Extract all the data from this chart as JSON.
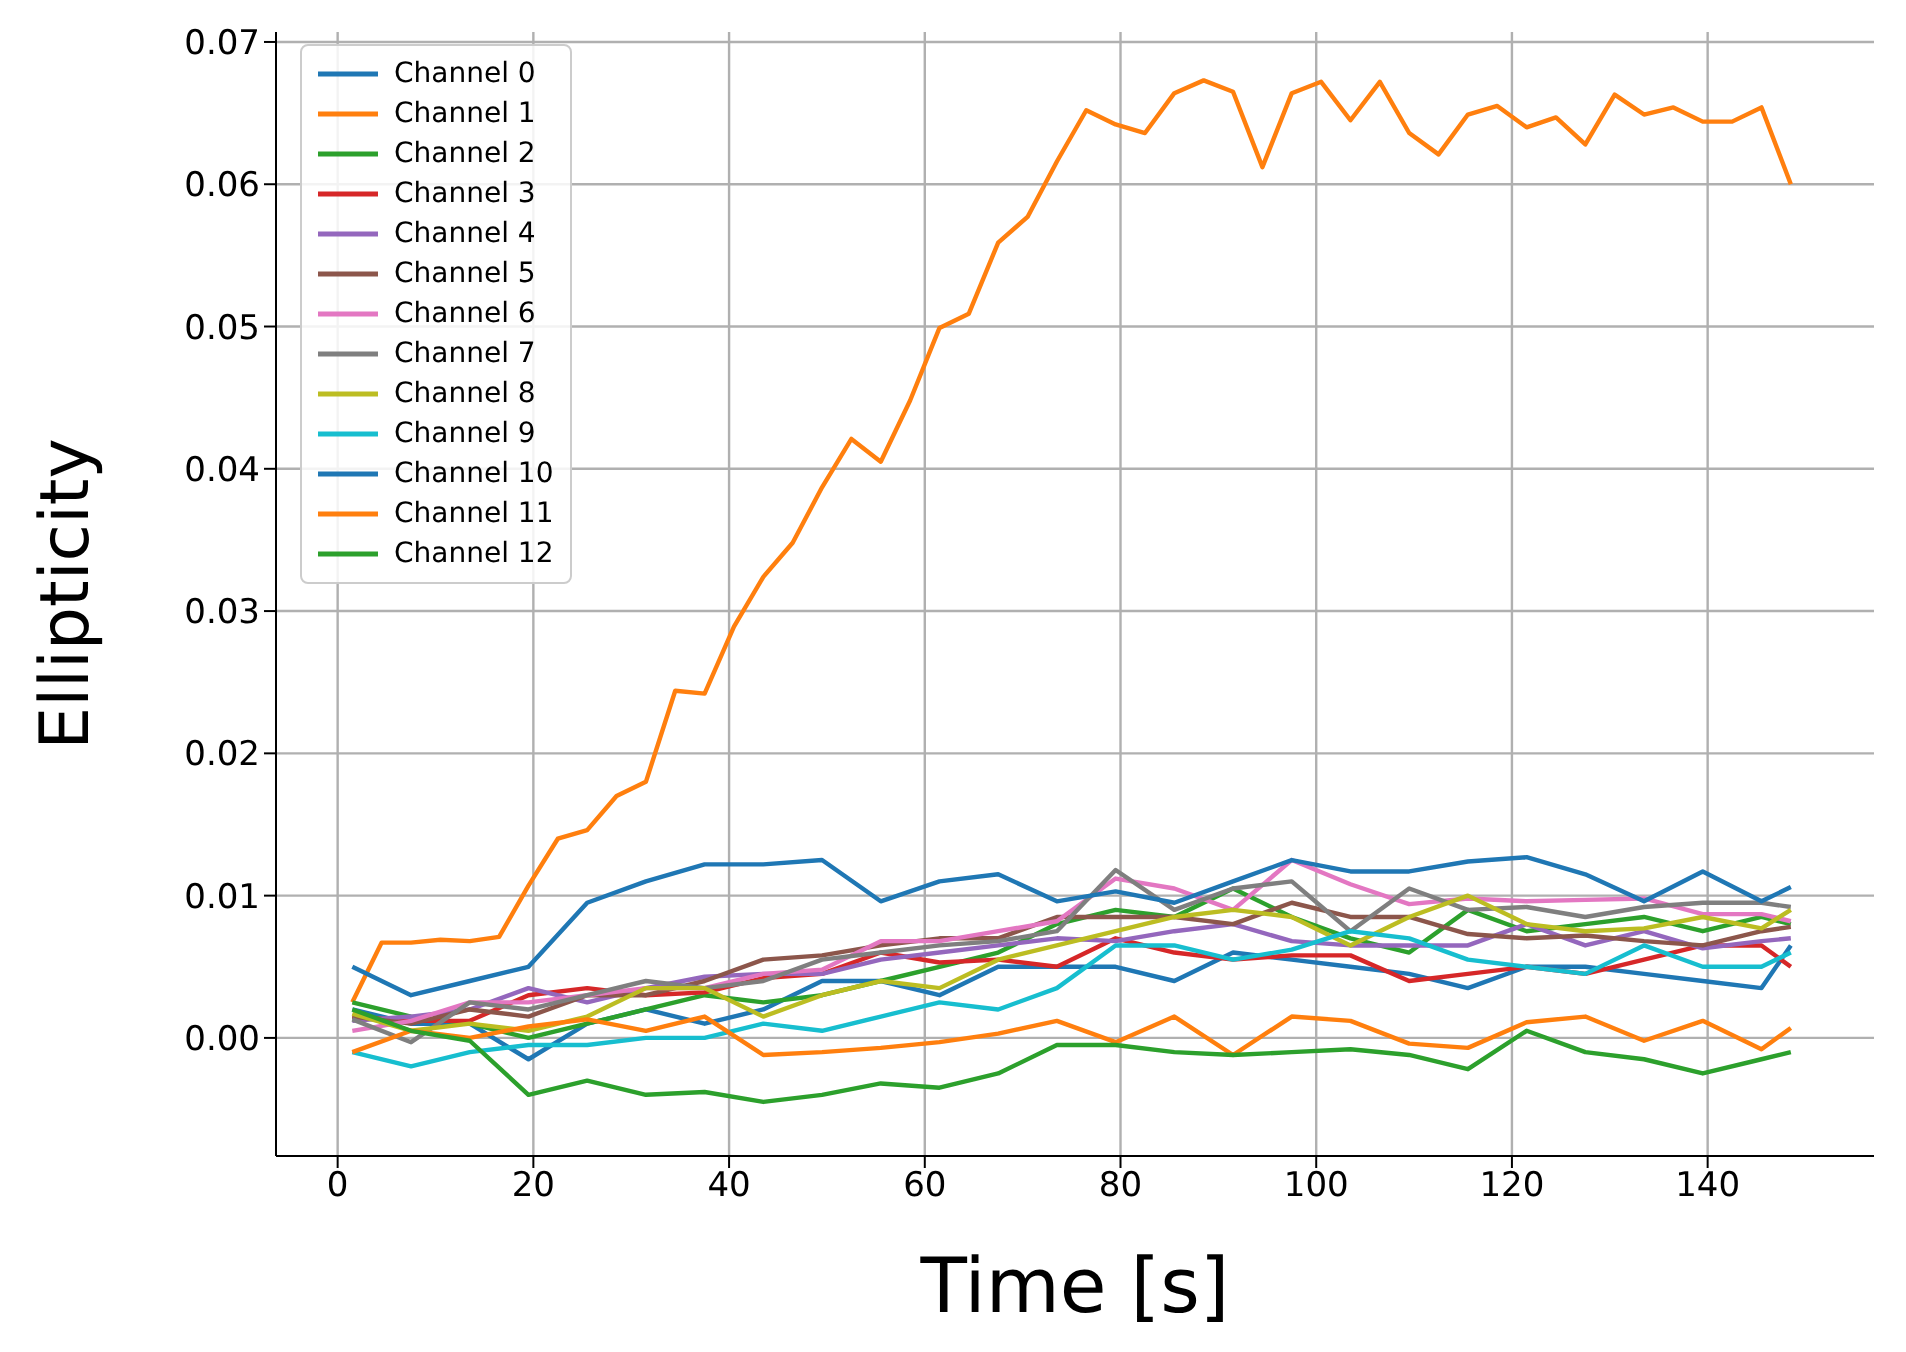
{
  "chart_data": {
    "type": "line",
    "xlabel": "Time [s]",
    "ylabel": "Ellipticity",
    "xlim": [
      -6.3,
      157
    ],
    "ylim": [
      -0.0083,
      0.0707
    ],
    "xticks": [
      0,
      20,
      40,
      60,
      80,
      100,
      120,
      140
    ],
    "yticks": [
      {
        "value": 0,
        "label": "0.00"
      },
      {
        "value": 0.01,
        "label": "0.01"
      },
      {
        "value": 0.02,
        "label": "0.02"
      },
      {
        "value": 0.03,
        "label": "0.03"
      },
      {
        "value": 0.04,
        "label": "0.04"
      },
      {
        "value": 0.05,
        "label": "0.05"
      },
      {
        "value": 0.06,
        "label": "0.06"
      },
      {
        "value": 0.07,
        "label": "0.07"
      }
    ],
    "grid": true,
    "legend": "top left",
    "line_style": "solid",
    "marker": "none",
    "x": [
      1.5,
      7.5,
      13.5,
      19.5,
      25.5,
      31.5,
      37.5,
      43.5,
      49.5,
      55.5,
      61.5,
      67.5,
      73.5,
      79.5,
      85.5,
      91.5,
      97.5,
      103.5,
      109.5,
      115.5,
      121.5,
      127.5,
      133.5,
      139.5,
      145.5,
      148.5
    ],
    "series": [
      {
        "name": "Channel 0",
        "color": "#1f77b4",
        "values": [
          0.002,
          0.001,
          0.001,
          -0.0015,
          0.001,
          0.002,
          0.001,
          0.002,
          0.004,
          0.004,
          0.003,
          0.005,
          0.005,
          0.005,
          0.004,
          0.006,
          0.0055,
          0.005,
          0.0045,
          0.0035,
          0.005,
          0.005,
          0.0045,
          0.004,
          0.0035,
          0.0065
        ]
      },
      {
        "name": "Channel 1",
        "color": "#ff7f0e",
        "x": [
          1.5,
          4.5,
          7.5,
          10.5,
          13.5,
          16.5,
          19.5,
          22.5,
          25.5,
          28.5,
          31.5,
          34.5,
          37.5,
          40.5,
          43.5,
          46.5,
          49.5,
          52.5,
          55.5,
          58.5,
          61.5,
          64.5,
          67.5,
          70.5,
          73.5,
          76.5,
          79.5,
          82.5,
          85.5,
          88.5,
          91.5,
          94.5,
          97.5,
          100.5,
          103.5,
          106.5,
          109.5,
          112.5,
          115.5,
          118.5,
          121.5,
          124.5,
          127.5,
          130.5,
          133.5,
          136.5,
          139.5,
          142.5,
          145.5,
          148.5
        ],
        "values": [
          0.0025,
          0.0067,
          0.0067,
          0.0069,
          0.0068,
          0.0071,
          0.0107,
          0.014,
          0.0146,
          0.017,
          0.018,
          0.0244,
          0.0242,
          0.0289,
          0.0324,
          0.0348,
          0.0387,
          0.0421,
          0.0405,
          0.0448,
          0.0499,
          0.0509,
          0.0559,
          0.0577,
          0.0616,
          0.0652,
          0.0642,
          0.0636,
          0.0664,
          0.0673,
          0.0665,
          0.0612,
          0.0664,
          0.0672,
          0.0645,
          0.0672,
          0.0636,
          0.0621,
          0.0649,
          0.0655,
          0.064,
          0.0647,
          0.0628,
          0.0663,
          0.0649,
          0.0654,
          0.0644,
          0.0644,
          0.0654,
          0.06
        ]
      },
      {
        "name": "Channel 2",
        "color": "#2ca02c",
        "values": [
          0.0025,
          0.0015,
          0.001,
          0,
          0.001,
          0.002,
          0.003,
          0.0025,
          0.003,
          0.004,
          0.005,
          0.006,
          0.008,
          0.009,
          0.0085,
          0.0105,
          0.0085,
          0.007,
          0.006,
          0.009,
          0.0075,
          0.008,
          0.0085,
          0.0075,
          0.0085,
          0.008
        ]
      },
      {
        "name": "Channel 3",
        "color": "#d62728",
        "values": [
          0.0015,
          0.0012,
          0.0012,
          0.003,
          0.0035,
          0.003,
          0.0032,
          0.0042,
          0.0045,
          0.006,
          0.0053,
          0.0055,
          0.005,
          0.007,
          0.006,
          0.0055,
          0.0058,
          0.0058,
          0.004,
          0.0045,
          0.005,
          0.0045,
          0.0055,
          0.0065,
          0.0065,
          0.005
        ]
      },
      {
        "name": "Channel 4",
        "color": "#9467bd",
        "values": [
          0.0012,
          0.0015,
          0.002,
          0.0035,
          0.0025,
          0.0035,
          0.0043,
          0.0045,
          0.0045,
          0.0055,
          0.006,
          0.0065,
          0.007,
          0.0068,
          0.0075,
          0.008,
          0.0068,
          0.0065,
          0.0065,
          0.0065,
          0.008,
          0.0065,
          0.0075,
          0.0063,
          0.0068,
          0.007
        ]
      },
      {
        "name": "Channel 5",
        "color": "#8c564b",
        "values": [
          0.0015,
          0.001,
          0.002,
          0.0015,
          0.003,
          0.003,
          0.004,
          0.0055,
          0.0058,
          0.0065,
          0.007,
          0.007,
          0.0085,
          0.0085,
          0.0085,
          0.008,
          0.0095,
          0.0085,
          0.0085,
          0.0073,
          0.007,
          0.0072,
          0.0068,
          0.0065,
          0.0075,
          0.0078
        ]
      },
      {
        "name": "Channel 6",
        "color": "#e377c2",
        "values": [
          0.0005,
          0.0012,
          0.0025,
          0.0025,
          0.003,
          0.0035,
          0.0035,
          0.0045,
          0.0048,
          0.0068,
          0.0068,
          0.0075,
          0.0082,
          0.0112,
          0.0105,
          0.009,
          0.0125,
          0.0108,
          0.0094,
          0.0098,
          0.0096,
          0.0097,
          0.0098,
          0.0087,
          0.0087,
          0.0082
        ]
      },
      {
        "name": "Channel 7",
        "color": "#7f7f7f",
        "values": [
          0.0013,
          -0.0003,
          0.0025,
          0.002,
          0.003,
          0.004,
          0.0035,
          0.004,
          0.0055,
          0.006,
          0.0065,
          0.0068,
          0.0075,
          0.0118,
          0.009,
          0.0105,
          0.011,
          0.0075,
          0.0105,
          0.009,
          0.0092,
          0.0085,
          0.0092,
          0.0095,
          0.0095,
          0.0092
        ]
      },
      {
        "name": "Channel 8",
        "color": "#bcbd22",
        "values": [
          0.0017,
          0.0005,
          0.001,
          0.0005,
          0.0015,
          0.0035,
          0.0035,
          0.0015,
          0.003,
          0.004,
          0.0035,
          0.0055,
          0.0065,
          0.0075,
          0.0085,
          0.009,
          0.0085,
          0.0065,
          0.0085,
          0.01,
          0.008,
          0.0075,
          0.0077,
          0.0085,
          0.0077,
          0.009
        ]
      },
      {
        "name": "Channel 9",
        "color": "#17becf",
        "values": [
          -0.001,
          -0.002,
          -0.001,
          -0.0005,
          -0.0005,
          0,
          0,
          0.001,
          0.0005,
          0.0015,
          0.0025,
          0.002,
          0.0035,
          0.0065,
          0.0065,
          0.0055,
          0.0062,
          0.0075,
          0.007,
          0.0055,
          0.005,
          0.0045,
          0.0065,
          0.005,
          0.005,
          0.006
        ]
      },
      {
        "name": "Channel 10",
        "color": "#1f77b4",
        "values": [
          0.005,
          0.003,
          0.004,
          0.005,
          0.0095,
          0.011,
          0.0122,
          0.0122,
          0.0125,
          0.0096,
          0.011,
          0.0115,
          0.0096,
          0.0103,
          0.0095,
          0.011,
          0.0125,
          0.0117,
          0.0117,
          0.0124,
          0.0127,
          0.0115,
          0.0096,
          0.0117,
          0.0096,
          0.0106
        ]
      },
      {
        "name": "Channel 11",
        "color": "#ff7f0e",
        "values": [
          -0.001,
          0.0005,
          0,
          0.0008,
          0.0013,
          0.0005,
          0.0015,
          -0.0012,
          -0.001,
          -0.0007,
          -0.0003,
          0.0003,
          0.0012,
          -0.0003,
          0.0015,
          -0.0012,
          0.0015,
          0.0012,
          -0.0004,
          -0.0007,
          0.0011,
          0.0015,
          -0.0002,
          0.0012,
          -0.0008,
          0.0007
        ]
      },
      {
        "name": "Channel 12",
        "color": "#2ca02c",
        "values": [
          0.002,
          0.0005,
          -0.0002,
          -0.004,
          -0.003,
          -0.004,
          -0.0038,
          -0.0045,
          -0.004,
          -0.0032,
          -0.0035,
          -0.0025,
          -0.0005,
          -0.0005,
          -0.001,
          -0.0012,
          -0.001,
          -0.0008,
          -0.0012,
          -0.0022,
          0.0005,
          -0.001,
          -0.0015,
          -0.0025,
          -0.0015,
          -0.001
        ]
      }
    ]
  }
}
